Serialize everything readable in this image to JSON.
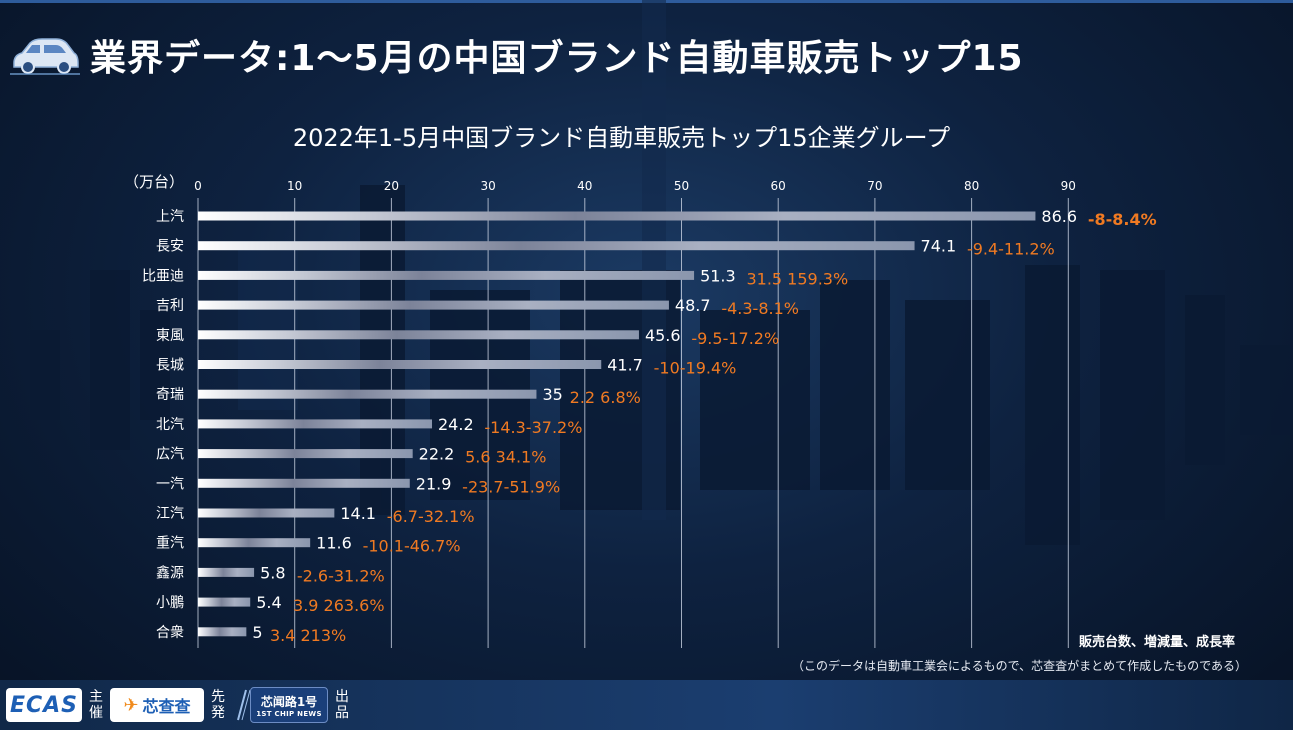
{
  "header": {
    "title": "業界データ:1～5月の中国ブランド自動車販売トップ15",
    "car_icon": "car-icon"
  },
  "chart_data": {
    "type": "bar",
    "orientation": "horizontal",
    "title": "2022年1-5月中国ブランド自動車販売トップ15企業グループ",
    "unit_label": "（万台）",
    "xlim": [
      0,
      90
    ],
    "ticks": [
      0,
      10,
      20,
      30,
      40,
      50,
      60,
      70,
      80,
      90
    ],
    "grid": true,
    "categories": [
      "上汽",
      "長安",
      "比亜迪",
      "吉利",
      "東風",
      "長城",
      "奇瑞",
      "北汽",
      "広汽",
      "一汽",
      "江汽",
      "重汽",
      "鑫源",
      "小鵬",
      "合衆"
    ],
    "values": [
      86.6,
      74.1,
      51.3,
      48.7,
      45.6,
      41.7,
      35,
      24.2,
      22.2,
      21.9,
      14.1,
      11.6,
      5.8,
      5.4,
      5
    ],
    "value_labels": [
      "86.6",
      "74.1",
      "51.3",
      "48.7",
      "45.6",
      "41.7",
      "35",
      "24.2",
      "22.2",
      "21.9",
      "14.1",
      "11.6",
      "5.8",
      "5.4",
      "5"
    ],
    "changes": [
      "-8-8.4%",
      "-9.4-11.2%",
      "31.5 159.3%",
      "-4.3-8.1%",
      "-9.5-17.2%",
      "-10-19.4%",
      "2.2 6.8%",
      "-14.3-37.2%",
      "5.6 34.1%",
      "-23.7-51.9%",
      "-6.7-32.1%",
      "-10.1-46.7%",
      "-2.6-31.2%",
      "3.9 263.6%",
      "3.4 213%"
    ],
    "legend_note": "販売台数、増減量、成長率",
    "source_note": "（このデータは自動車工業会によるもので、芯查査がまとめて作成したものである）",
    "colors": {
      "change": "#f07a22",
      "bar_light": "#ffffff",
      "bar_dark": "#8a96ad"
    }
  },
  "footer": {
    "ecas": "ECAS",
    "role1": "主催",
    "xcc_name": "芯查查",
    "role2": "先発",
    "news_cn": "芯闻路1号",
    "news_en": "1ST CHIP NEWS",
    "role3": "出品"
  }
}
